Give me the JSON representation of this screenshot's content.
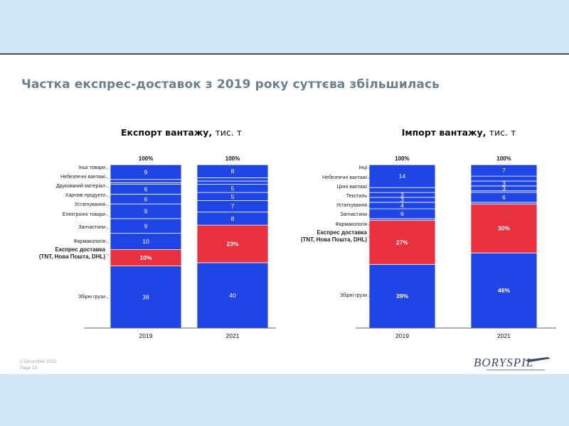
{
  "slide": {
    "title": "Частка експрес-доставок з 2019 року суттєва збільшилась",
    "footer_date": "2 December 2021",
    "footer_page": "Page 13",
    "logo": "BORYSPIL",
    "colors": {
      "blue": "#1f45e6",
      "red": "#e8303f",
      "background": "#cfe6f7"
    }
  },
  "chart_data": [
    {
      "type": "bar",
      "stacked": true,
      "title": "Експорт вантажу,",
      "unit": "тис. т",
      "categories": [
        "2019",
        "2021"
      ],
      "totals": [
        "100%",
        "100%"
      ],
      "series_order_bottom_to_top": [
        "Збірні грузи",
        "Експрес доставка\n(TNT, Нова Пошта, DHL)",
        "Фармакологія",
        "Запчастини",
        "Електронні товари",
        "Устаткування",
        "Харчові продукти",
        "Друкований матеріал",
        "Небезпечні вантажі",
        "Інші товари"
      ],
      "series": [
        {
          "name": "Збірні грузи",
          "values": [
            38,
            40
          ],
          "labels": [
            "38",
            "40"
          ],
          "color": "blue"
        },
        {
          "name": "Експрес доставка\n(TNT, Нова Пошта, DHL)",
          "values": [
            10,
            23
          ],
          "labels": [
            "10%",
            "23%"
          ],
          "color": "red",
          "highlight": true
        },
        {
          "name": "Фармакологія",
          "values": [
            10,
            0
          ],
          "labels": [
            "10",
            ""
          ],
          "color": "blue"
        },
        {
          "name": "Запчастини",
          "values": [
            9,
            8
          ],
          "labels": [
            "9",
            "8"
          ],
          "color": "blue"
        },
        {
          "name": "Електронні товари",
          "values": [
            9,
            7
          ],
          "labels": [
            "9",
            "7"
          ],
          "color": "blue"
        },
        {
          "name": "Устаткування",
          "values": [
            6,
            5
          ],
          "labels": [
            "6",
            "5"
          ],
          "color": "blue"
        },
        {
          "name": "Харчові продукти",
          "values": [
            6,
            5
          ],
          "labels": [
            "6",
            "5"
          ],
          "color": "blue"
        },
        {
          "name": "Друкований матеріал",
          "values": [
            1,
            2
          ],
          "labels": [
            "",
            ""
          ],
          "color": "blue"
        },
        {
          "name": "Небезпечні вантажі",
          "values": [
            2,
            2
          ],
          "labels": [
            "",
            ""
          ],
          "color": "blue"
        },
        {
          "name": "Інші товари",
          "values": [
            9,
            8
          ],
          "labels": [
            "9",
            "8"
          ],
          "color": "blue"
        }
      ]
    },
    {
      "type": "bar",
      "stacked": true,
      "title": "Імпорт вантажу,",
      "unit": "тис. т",
      "categories": [
        "2019",
        "2021"
      ],
      "totals": [
        "100%",
        "100%"
      ],
      "series_order_bottom_to_top": [
        "Збірні грузи",
        "Експрес доставка\n(TNT, Нова Пошта, DHL)",
        "Фармакологія",
        "Запчастини",
        "Устаткування",
        "Текстиль",
        "Цінні вантажі",
        "Небезпечні вантажі",
        "Інці"
      ],
      "series": [
        {
          "name": "Збірні грузи",
          "values": [
            39,
            46
          ],
          "labels": [
            "39%",
            "46%"
          ],
          "color": "blue"
        },
        {
          "name": "Експрес доставка\n(TNT, Нова Пошта, DHL)",
          "values": [
            27,
            30
          ],
          "labels": [
            "27%",
            "30%"
          ],
          "color": "red",
          "highlight": true
        },
        {
          "name": "Фармакологія",
          "values": [
            1,
            1
          ],
          "labels": [
            "",
            ""
          ],
          "color": "blue"
        },
        {
          "name": "Запчастини",
          "values": [
            6,
            6
          ],
          "labels": [
            "6",
            "6"
          ],
          "color": "blue"
        },
        {
          "name": "Устаткування",
          "values": [
            4,
            1
          ],
          "labels": [
            "4",
            ""
          ],
          "color": "blue"
        },
        {
          "name": "Текстиль",
          "values": [
            3,
            3
          ],
          "labels": [
            "3",
            "3"
          ],
          "color": "blue"
        },
        {
          "name": "Цінні вантажі",
          "values": [
            3,
            3
          ],
          "labels": [
            "3",
            "3"
          ],
          "color": "blue"
        },
        {
          "name": "Небезпечні вантажі",
          "values": [
            3,
            3
          ],
          "labels": [
            "",
            ""
          ],
          "color": "blue"
        },
        {
          "name": "Інці",
          "values": [
            14,
            7
          ],
          "labels": [
            "14",
            "7"
          ],
          "color": "blue"
        }
      ]
    }
  ]
}
